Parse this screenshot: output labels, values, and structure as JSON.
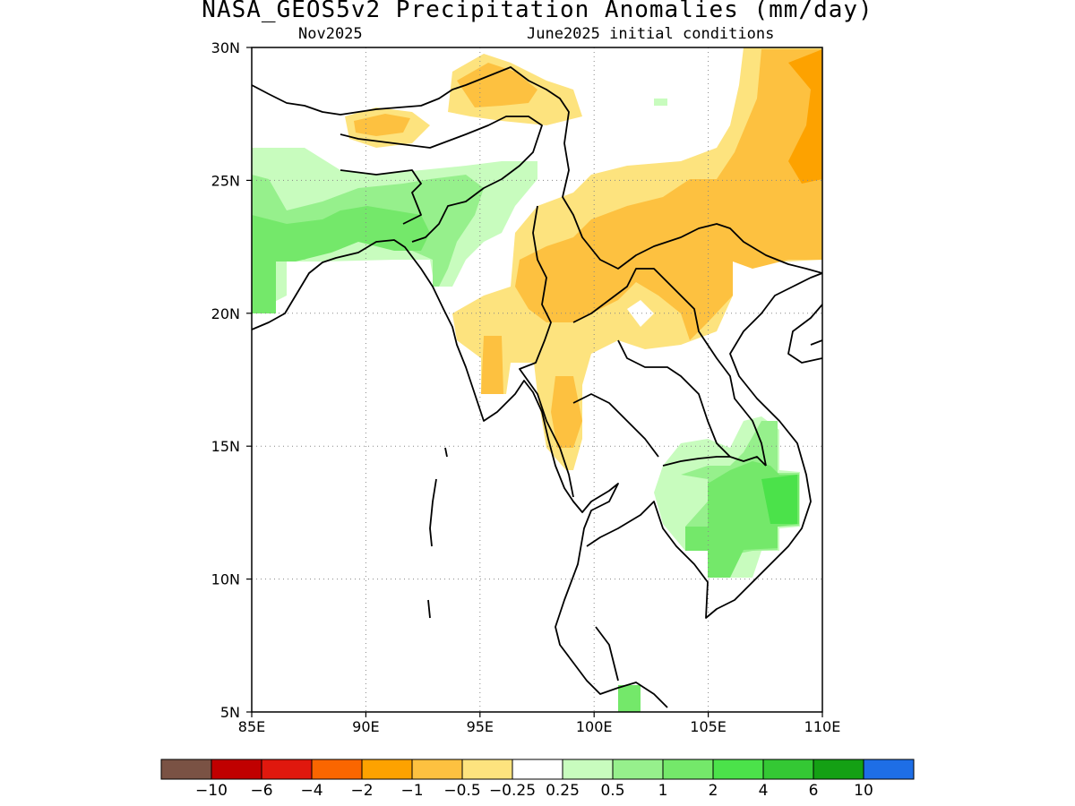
{
  "title": "NASA_GEOS5v2 Precipitation Anomalies (mm/day)",
  "subtitle_left": "Nov2025",
  "subtitle_right": "June2025 initial conditions",
  "map": {
    "lon_range": [
      85,
      110
    ],
    "lat_range": [
      5,
      30
    ],
    "x_ticks": [
      "85E",
      "90E",
      "95E",
      "100E",
      "105E",
      "110E"
    ],
    "y_ticks": [
      "5N",
      "10N",
      "15N",
      "20N",
      "25N",
      "30N"
    ],
    "grid": "dotted"
  },
  "colorbar": {
    "labels": [
      "−10",
      "−6",
      "−4",
      "−2",
      "−1",
      "−0.5",
      "−0.25",
      "0.25",
      "0.5",
      "1",
      "2",
      "4",
      "6",
      "10"
    ],
    "colors": [
      "#7a5244",
      "#c00000",
      "#e0180e",
      "#fa6600",
      "#fda200",
      "#fdc140",
      "#fde37e",
      "#ffffff",
      "#c8fcbe",
      "#96f08c",
      "#74e86a",
      "#4be24a",
      "#34c834",
      "#14a014",
      "#1e6ee6"
    ]
  }
}
